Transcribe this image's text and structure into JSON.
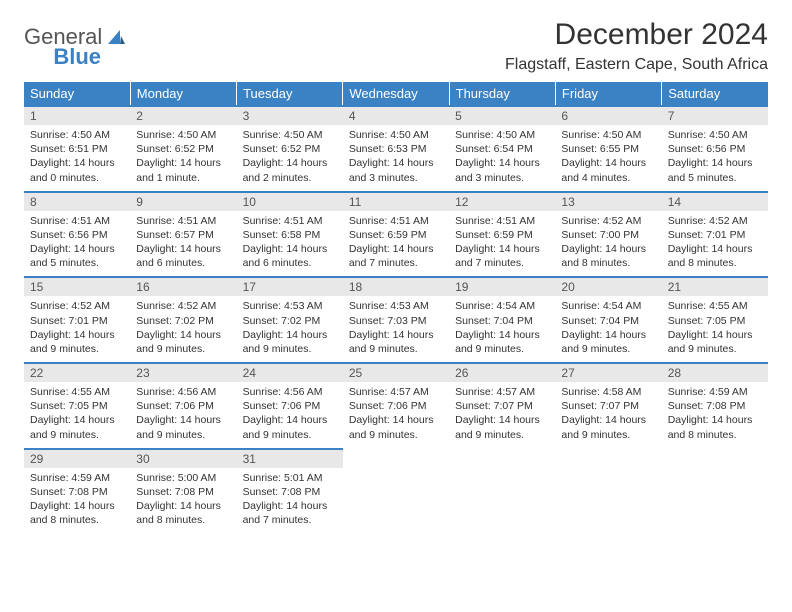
{
  "brand": {
    "word1": "General",
    "word2": "Blue",
    "logo_color": "#3b82c4"
  },
  "title": "December 2024",
  "subtitle": "Flagstaff, Eastern Cape, South Africa",
  "theme": {
    "header_bg": "#3b82c4",
    "header_fg": "#ffffff",
    "daynum_bg": "#e8e8e8",
    "rule": "#3b82c4"
  },
  "weekdays": [
    "Sunday",
    "Monday",
    "Tuesday",
    "Wednesday",
    "Thursday",
    "Friday",
    "Saturday"
  ],
  "weeks": [
    [
      {
        "n": "1",
        "sr": "4:50 AM",
        "ss": "6:51 PM",
        "dl": "14 hours and 0 minutes."
      },
      {
        "n": "2",
        "sr": "4:50 AM",
        "ss": "6:52 PM",
        "dl": "14 hours and 1 minute."
      },
      {
        "n": "3",
        "sr": "4:50 AM",
        "ss": "6:52 PM",
        "dl": "14 hours and 2 minutes."
      },
      {
        "n": "4",
        "sr": "4:50 AM",
        "ss": "6:53 PM",
        "dl": "14 hours and 3 minutes."
      },
      {
        "n": "5",
        "sr": "4:50 AM",
        "ss": "6:54 PM",
        "dl": "14 hours and 3 minutes."
      },
      {
        "n": "6",
        "sr": "4:50 AM",
        "ss": "6:55 PM",
        "dl": "14 hours and 4 minutes."
      },
      {
        "n": "7",
        "sr": "4:50 AM",
        "ss": "6:56 PM",
        "dl": "14 hours and 5 minutes."
      }
    ],
    [
      {
        "n": "8",
        "sr": "4:51 AM",
        "ss": "6:56 PM",
        "dl": "14 hours and 5 minutes."
      },
      {
        "n": "9",
        "sr": "4:51 AM",
        "ss": "6:57 PM",
        "dl": "14 hours and 6 minutes."
      },
      {
        "n": "10",
        "sr": "4:51 AM",
        "ss": "6:58 PM",
        "dl": "14 hours and 6 minutes."
      },
      {
        "n": "11",
        "sr": "4:51 AM",
        "ss": "6:59 PM",
        "dl": "14 hours and 7 minutes."
      },
      {
        "n": "12",
        "sr": "4:51 AM",
        "ss": "6:59 PM",
        "dl": "14 hours and 7 minutes."
      },
      {
        "n": "13",
        "sr": "4:52 AM",
        "ss": "7:00 PM",
        "dl": "14 hours and 8 minutes."
      },
      {
        "n": "14",
        "sr": "4:52 AM",
        "ss": "7:01 PM",
        "dl": "14 hours and 8 minutes."
      }
    ],
    [
      {
        "n": "15",
        "sr": "4:52 AM",
        "ss": "7:01 PM",
        "dl": "14 hours and 9 minutes."
      },
      {
        "n": "16",
        "sr": "4:52 AM",
        "ss": "7:02 PM",
        "dl": "14 hours and 9 minutes."
      },
      {
        "n": "17",
        "sr": "4:53 AM",
        "ss": "7:02 PM",
        "dl": "14 hours and 9 minutes."
      },
      {
        "n": "18",
        "sr": "4:53 AM",
        "ss": "7:03 PM",
        "dl": "14 hours and 9 minutes."
      },
      {
        "n": "19",
        "sr": "4:54 AM",
        "ss": "7:04 PM",
        "dl": "14 hours and 9 minutes."
      },
      {
        "n": "20",
        "sr": "4:54 AM",
        "ss": "7:04 PM",
        "dl": "14 hours and 9 minutes."
      },
      {
        "n": "21",
        "sr": "4:55 AM",
        "ss": "7:05 PM",
        "dl": "14 hours and 9 minutes."
      }
    ],
    [
      {
        "n": "22",
        "sr": "4:55 AM",
        "ss": "7:05 PM",
        "dl": "14 hours and 9 minutes."
      },
      {
        "n": "23",
        "sr": "4:56 AM",
        "ss": "7:06 PM",
        "dl": "14 hours and 9 minutes."
      },
      {
        "n": "24",
        "sr": "4:56 AM",
        "ss": "7:06 PM",
        "dl": "14 hours and 9 minutes."
      },
      {
        "n": "25",
        "sr": "4:57 AM",
        "ss": "7:06 PM",
        "dl": "14 hours and 9 minutes."
      },
      {
        "n": "26",
        "sr": "4:57 AM",
        "ss": "7:07 PM",
        "dl": "14 hours and 9 minutes."
      },
      {
        "n": "27",
        "sr": "4:58 AM",
        "ss": "7:07 PM",
        "dl": "14 hours and 9 minutes."
      },
      {
        "n": "28",
        "sr": "4:59 AM",
        "ss": "7:08 PM",
        "dl": "14 hours and 8 minutes."
      }
    ],
    [
      {
        "n": "29",
        "sr": "4:59 AM",
        "ss": "7:08 PM",
        "dl": "14 hours and 8 minutes."
      },
      {
        "n": "30",
        "sr": "5:00 AM",
        "ss": "7:08 PM",
        "dl": "14 hours and 8 minutes."
      },
      {
        "n": "31",
        "sr": "5:01 AM",
        "ss": "7:08 PM",
        "dl": "14 hours and 7 minutes."
      },
      null,
      null,
      null,
      null
    ]
  ],
  "labels": {
    "sunrise": "Sunrise:",
    "sunset": "Sunset:",
    "daylight": "Daylight:"
  }
}
